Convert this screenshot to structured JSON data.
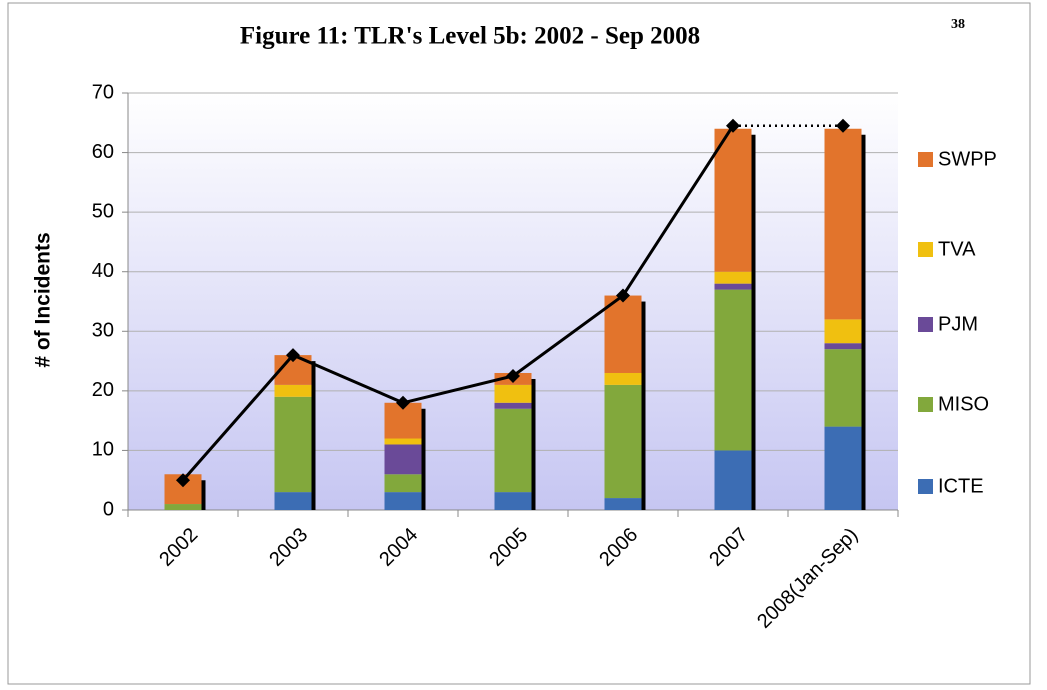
{
  "chart_data": {
    "type": "stacked_bar_line",
    "title": "Figure 11: TLR's Level 5b: 2002 - Sep 2008",
    "page_number": "38",
    "y_label": "# of Incidents",
    "categories": [
      "2002",
      "2003",
      "2004",
      "2005",
      "2006",
      "2007",
      "2008(Jan-Sep)"
    ],
    "series": [
      {
        "name": "ICTE",
        "color": "#3c6db4",
        "values": [
          0,
          3,
          3,
          3,
          2,
          10,
          14
        ]
      },
      {
        "name": "MISO",
        "color": "#82a83c",
        "values": [
          1,
          16,
          3,
          14,
          19,
          27,
          13
        ]
      },
      {
        "name": "PJM",
        "color": "#6a4a98",
        "values": [
          0,
          0,
          5,
          1,
          0,
          1,
          1
        ]
      },
      {
        "name": "TVA",
        "color": "#f0c010",
        "values": [
          0,
          2,
          1,
          3,
          2,
          2,
          4
        ]
      },
      {
        "name": "SWPP",
        "color": "#e2742c",
        "values": [
          5,
          5,
          6,
          2,
          13,
          24,
          32
        ]
      }
    ],
    "line_values": [
      5,
      26,
      18,
      22.5,
      36,
      64.5,
      64.5
    ],
    "line_color": "#000000",
    "line_last_segment_dotted": true,
    "ylim": [
      0,
      70
    ],
    "yticks": [
      0,
      10,
      20,
      30,
      40,
      50,
      60,
      70
    ],
    "grid": true,
    "legend": "right"
  }
}
